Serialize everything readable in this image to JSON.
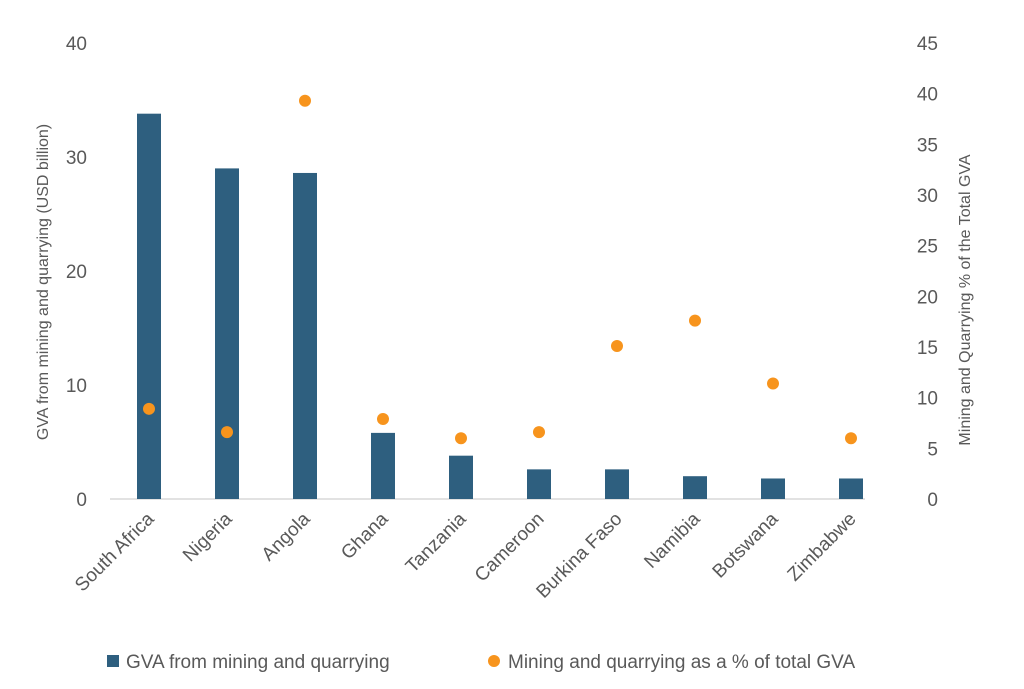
{
  "chart_data": {
    "type": "bar",
    "categories": [
      "South Africa",
      "Nigeria",
      "Angola",
      "Ghana",
      "Tanzania",
      "Cameroon",
      "Burkina Faso",
      "Namibia",
      "Botswana",
      "Zimbabwe"
    ],
    "series": [
      {
        "name": "GVA from mining and quarrying",
        "type": "bar",
        "axis": "left",
        "color": "#2e5f7f",
        "values": [
          33.8,
          29.0,
          28.6,
          5.8,
          3.8,
          2.6,
          2.6,
          2.0,
          1.8,
          1.8
        ]
      },
      {
        "name": "Mining and quarrying as a % of total GVA",
        "type": "scatter",
        "axis": "right",
        "color": "#f7941d",
        "values": [
          8.9,
          6.6,
          39.3,
          7.9,
          6.0,
          6.6,
          15.1,
          17.6,
          11.4,
          6.0
        ]
      }
    ],
    "y_left": {
      "label": "GVA from mining and quarrying (USD billion)",
      "range": [
        0,
        40
      ],
      "ticks": [
        "0",
        "10",
        "20",
        "30",
        "40"
      ]
    },
    "y_right": {
      "label": "Mining and Quarrying % of the Total GVA",
      "range": [
        0,
        45
      ],
      "ticks": [
        "0",
        "5",
        "10",
        "15",
        "20",
        "25",
        "30",
        "35",
        "40",
        "45"
      ]
    },
    "grid": false,
    "legend_position": "bottom"
  }
}
